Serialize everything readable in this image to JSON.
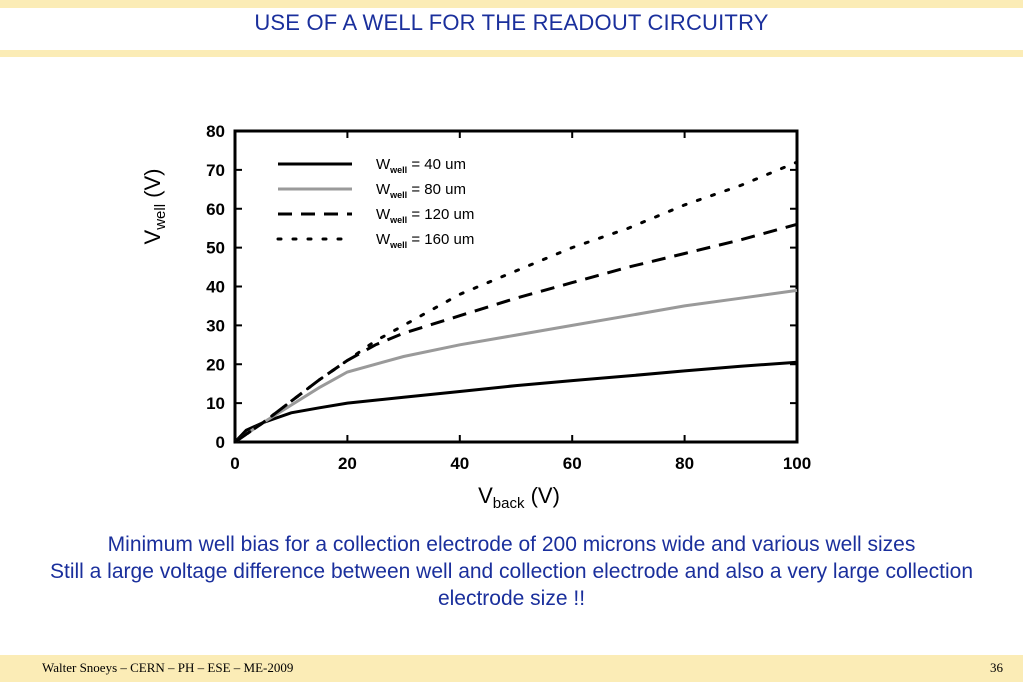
{
  "slide": {
    "title": "USE OF A WELL FOR THE READOUT CIRCUITRY",
    "caption_line1": "Minimum well bias for a collection electrode of 200 microns wide and various well sizes",
    "caption_line2": "Still a large voltage difference between well and collection electrode and also a very large collection electrode size !!",
    "footer_left": "Walter Snoeys – CERN – PH – ESE – ME-2009",
    "page_number": "36"
  },
  "chart_data": {
    "type": "line",
    "x_label_main": "V",
    "x_label_sub": "back",
    "x_label_unit": "(V)",
    "y_label_main": "V",
    "y_label_sub": "well",
    "y_label_unit": "(V)",
    "xlim": [
      0,
      100
    ],
    "ylim": [
      0,
      80
    ],
    "x_ticks": [
      0,
      20,
      40,
      60,
      80,
      100
    ],
    "y_ticks": [
      0,
      10,
      20,
      30,
      40,
      50,
      60,
      70,
      80
    ],
    "legend_position": "top-left",
    "series": [
      {
        "name": "W",
        "name_sub": "well",
        "label_value": "=  40 um",
        "style": "solid",
        "color": "#000000",
        "x": [
          0,
          2,
          5,
          10,
          15,
          20,
          30,
          40,
          50,
          60,
          70,
          80,
          90,
          100
        ],
        "y": [
          0,
          3,
          5,
          7.5,
          8.8,
          10,
          11.5,
          13,
          14.5,
          15.8,
          17,
          18.3,
          19.5,
          20.5
        ]
      },
      {
        "name": "W",
        "name_sub": "well",
        "label_value": "=  80 um",
        "style": "gray",
        "color": "#9a9a9a",
        "x": [
          0,
          5,
          10,
          15,
          20,
          30,
          40,
          50,
          60,
          70,
          80,
          90,
          100
        ],
        "y": [
          0,
          5,
          9.5,
          14,
          18,
          22,
          25,
          27.5,
          30,
          32.5,
          35,
          37,
          39
        ]
      },
      {
        "name": "W",
        "name_sub": "well",
        "label_value": "=  120 um",
        "style": "dashed",
        "color": "#000000",
        "x": [
          0,
          5,
          10,
          15,
          20,
          25,
          30,
          40,
          50,
          60,
          70,
          80,
          90,
          100
        ],
        "y": [
          0,
          5,
          10.5,
          16,
          21,
          25,
          28,
          32.5,
          37,
          41,
          45,
          48.5,
          52,
          56
        ]
      },
      {
        "name": "W",
        "name_sub": "well",
        "label_value": "=  160 um",
        "style": "dotted",
        "color": "#000000",
        "x": [
          0,
          5,
          10,
          15,
          20,
          25,
          30,
          40,
          50,
          60,
          70,
          80,
          90,
          100
        ],
        "y": [
          0,
          5,
          10.5,
          16,
          21,
          26,
          30,
          38,
          44,
          50,
          55,
          61,
          66,
          72
        ]
      }
    ]
  }
}
